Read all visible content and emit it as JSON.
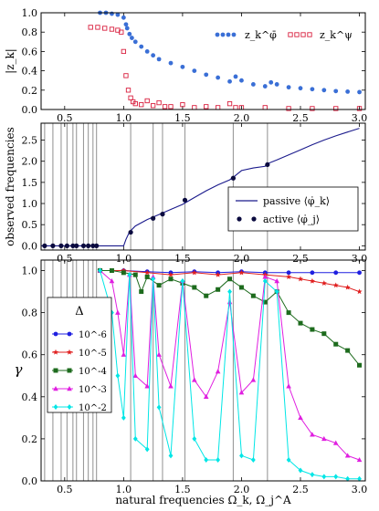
{
  "chart_data": [
    {
      "type": "scatter",
      "ylabel": "|z_k|",
      "xlim": [
        0.3,
        3.05
      ],
      "ylim": [
        0,
        1.0
      ],
      "xticks": [
        "0.5",
        "1.0",
        "1.5",
        "2.0",
        "2.5",
        "3.0"
      ],
      "yticks": [
        "0.0",
        "0.2",
        "0.4",
        "0.6",
        "0.8",
        "1.0"
      ],
      "legend": {
        "placement": "top-right",
        "entries": [
          "z_k^φ̄",
          "z_k^ψ"
        ]
      },
      "series": [
        {
          "name": "z_k^φ̄",
          "color": "#3a6fd6",
          "marker": "circle",
          "x": [
            0.8,
            0.85,
            0.9,
            0.95,
            1.0,
            1.02,
            1.03,
            1.05,
            1.07,
            1.1,
            1.15,
            1.2,
            1.25,
            1.3,
            1.4,
            1.5,
            1.6,
            1.7,
            1.8,
            1.9,
            1.95,
            2.0,
            2.1,
            2.2,
            2.25,
            2.3,
            2.4,
            2.5,
            2.6,
            2.7,
            2.8,
            2.9,
            3.0
          ],
          "y": [
            1.0,
            1.0,
            0.99,
            0.98,
            0.95,
            0.88,
            0.84,
            0.78,
            0.74,
            0.7,
            0.65,
            0.6,
            0.56,
            0.52,
            0.48,
            0.44,
            0.4,
            0.36,
            0.33,
            0.29,
            0.34,
            0.3,
            0.26,
            0.24,
            0.28,
            0.26,
            0.23,
            0.22,
            0.21,
            0.2,
            0.19,
            0.185,
            0.18
          ]
        },
        {
          "name": "z_k^ψ",
          "color": "#d9203f",
          "marker": "square-open",
          "x": [
            0.72,
            0.78,
            0.84,
            0.9,
            0.95,
            0.98,
            1.0,
            1.02,
            1.04,
            1.06,
            1.08,
            1.1,
            1.15,
            1.2,
            1.25,
            1.3,
            1.35,
            1.4,
            1.5,
            1.6,
            1.7,
            1.8,
            1.9,
            1.95,
            2.0,
            2.2,
            2.4,
            2.6,
            2.8,
            3.0
          ],
          "y": [
            0.85,
            0.85,
            0.84,
            0.83,
            0.82,
            0.8,
            0.6,
            0.35,
            0.2,
            0.12,
            0.08,
            0.06,
            0.05,
            0.09,
            0.04,
            0.07,
            0.03,
            0.03,
            0.05,
            0.02,
            0.03,
            0.02,
            0.06,
            0.02,
            0.02,
            0.02,
            0.01,
            0.01,
            0.01,
            0.01
          ]
        }
      ]
    },
    {
      "type": "line",
      "ylabel": "observed frequencies",
      "xlim": [
        0.3,
        3.05
      ],
      "ylim": [
        -0.1,
        2.9
      ],
      "xticks": [
        "0.5",
        "1.0",
        "1.5",
        "2.0",
        "2.5",
        "3.0"
      ],
      "yticks": [
        "0.0",
        "0.5",
        "1.0",
        "1.5",
        "2.0",
        "2.5"
      ],
      "legend": {
        "placement": "center-right",
        "entries": [
          "passive ⟨φ̇_k⟩",
          "active ⟨φ̇_j⟩"
        ]
      },
      "passive": {
        "name": "passive ⟨φ̇_k⟩",
        "color": "#1a1a8c",
        "x": [
          0.3,
          1.0,
          1.02,
          1.05,
          1.1,
          1.2,
          1.3,
          1.4,
          1.5,
          1.6,
          1.7,
          1.8,
          1.9,
          1.93,
          2.0,
          2.1,
          2.2,
          2.21,
          2.3,
          2.4,
          2.5,
          2.6,
          2.7,
          2.8,
          2.9,
          3.0
        ],
        "y": [
          0.0,
          0.0,
          0.15,
          0.33,
          0.47,
          0.62,
          0.74,
          0.86,
          0.98,
          1.14,
          1.3,
          1.44,
          1.56,
          1.62,
          1.78,
          1.84,
          1.88,
          1.93,
          2.03,
          2.15,
          2.27,
          2.39,
          2.5,
          2.6,
          2.69,
          2.78
        ]
      },
      "active": {
        "name": "active ⟨φ̇_j⟩",
        "color": "#0b0b3f",
        "x": [
          0.33,
          0.4,
          0.47,
          0.52,
          0.57,
          0.6,
          0.66,
          0.7,
          0.74,
          0.77,
          1.06,
          1.25,
          1.33,
          1.52,
          1.93,
          2.22
        ],
        "y": [
          0,
          0,
          0,
          0,
          0,
          0,
          0,
          0,
          0,
          0,
          0.32,
          0.65,
          0.75,
          1.08,
          1.6,
          1.92
        ]
      },
      "vlines": [
        0.33,
        0.4,
        0.47,
        0.52,
        0.57,
        0.6,
        0.66,
        0.7,
        0.74,
        0.77,
        1.06,
        1.25,
        1.33,
        1.52,
        1.93,
        2.22
      ]
    },
    {
      "type": "line",
      "xlabel": "natural frequencies Ω_k, Ω_j^A",
      "ylabel": "γ",
      "xlim": [
        0.3,
        3.05
      ],
      "ylim": [
        0.0,
        1.05
      ],
      "xticks": [
        "0.5",
        "1.0",
        "1.5",
        "2.0",
        "2.5",
        "3.0"
      ],
      "yticks": [
        "0.0",
        "0.2",
        "0.4",
        "0.6",
        "0.8",
        "1.0"
      ],
      "legend": {
        "placement": "center-left",
        "title": "Δ",
        "entries": [
          "10^-6",
          "10^-5",
          "10^-4",
          "10^-3",
          "10^-2"
        ]
      },
      "vlines": [
        0.33,
        0.4,
        0.47,
        0.52,
        0.57,
        0.6,
        0.66,
        0.7,
        0.74,
        0.77,
        1.06,
        1.25,
        1.33,
        1.52,
        1.93,
        2.22
      ],
      "series": [
        {
          "name": "10^-6",
          "color": "#1f1fe0",
          "marker": "circle",
          "x": [
            0.8,
            1.0,
            1.2,
            1.4,
            1.6,
            1.8,
            2.0,
            2.2,
            2.4,
            2.6,
            2.8,
            3.0
          ],
          "y": [
            1.0,
            1.0,
            0.995,
            0.99,
            0.995,
            0.99,
            0.995,
            0.99,
            0.99,
            0.99,
            0.99,
            0.99
          ]
        },
        {
          "name": "10^-5",
          "color": "#e01f1f",
          "marker": "star",
          "x": [
            0.8,
            1.0,
            1.2,
            1.4,
            1.6,
            1.8,
            2.0,
            2.2,
            2.4,
            2.5,
            2.6,
            2.7,
            2.8,
            2.9,
            3.0
          ],
          "y": [
            1.0,
            1.0,
            0.99,
            0.98,
            0.99,
            0.98,
            0.99,
            0.98,
            0.97,
            0.96,
            0.95,
            0.94,
            0.93,
            0.92,
            0.9
          ]
        },
        {
          "name": "10^-4",
          "color": "#1d6b1d",
          "marker": "square",
          "x": [
            0.8,
            0.9,
            1.0,
            1.1,
            1.15,
            1.2,
            1.3,
            1.4,
            1.5,
            1.6,
            1.7,
            1.8,
            1.9,
            2.0,
            2.1,
            2.2,
            2.3,
            2.4,
            2.5,
            2.6,
            2.7,
            2.8,
            2.9,
            3.0
          ],
          "y": [
            1.0,
            1.0,
            0.99,
            0.98,
            0.9,
            0.97,
            0.93,
            0.96,
            0.94,
            0.92,
            0.88,
            0.91,
            0.96,
            0.92,
            0.88,
            0.85,
            0.9,
            0.8,
            0.75,
            0.72,
            0.7,
            0.65,
            0.62,
            0.55
          ]
        },
        {
          "name": "10^-3",
          "color": "#e01fe0",
          "marker": "triangle",
          "x": [
            0.8,
            0.9,
            0.95,
            1.0,
            1.05,
            1.1,
            1.2,
            1.25,
            1.3,
            1.4,
            1.5,
            1.6,
            1.7,
            1.8,
            1.9,
            2.0,
            2.1,
            2.2,
            2.3,
            2.4,
            2.5,
            2.6,
            2.7,
            2.8,
            2.9,
            3.0
          ],
          "y": [
            1.0,
            0.95,
            0.8,
            0.6,
            0.98,
            0.5,
            0.45,
            0.97,
            0.6,
            0.45,
            0.95,
            0.48,
            0.4,
            0.52,
            0.85,
            0.42,
            0.48,
            0.97,
            0.95,
            0.45,
            0.3,
            0.22,
            0.2,
            0.18,
            0.12,
            0.1
          ]
        },
        {
          "name": "10^-2",
          "color": "#00e6e6",
          "marker": "diamond",
          "x": [
            0.8,
            0.9,
            0.95,
            1.0,
            1.05,
            1.1,
            1.2,
            1.25,
            1.3,
            1.4,
            1.5,
            1.6,
            1.7,
            1.8,
            1.9,
            2.0,
            2.1,
            2.2,
            2.3,
            2.4,
            2.5,
            2.6,
            2.7,
            2.8,
            2.9,
            3.0
          ],
          "y": [
            1.0,
            0.8,
            0.5,
            0.3,
            0.98,
            0.2,
            0.15,
            0.96,
            0.35,
            0.12,
            0.95,
            0.2,
            0.1,
            0.1,
            0.9,
            0.12,
            0.1,
            0.95,
            0.9,
            0.1,
            0.05,
            0.03,
            0.02,
            0.02,
            0.01,
            0.01
          ]
        }
      ]
    }
  ]
}
